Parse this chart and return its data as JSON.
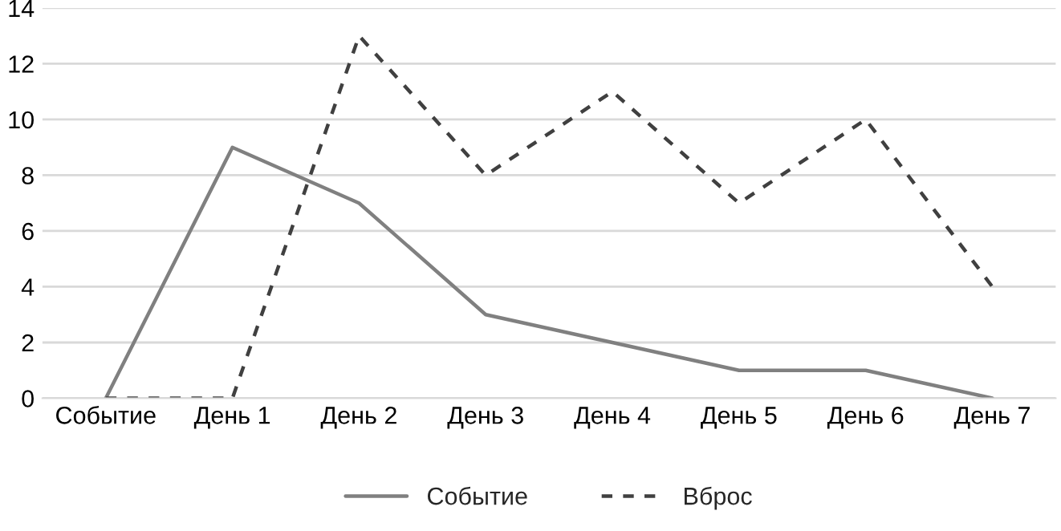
{
  "chart_data": {
    "type": "line",
    "categories": [
      "Событие",
      "День 1",
      "День 2",
      "День 3",
      "День 4",
      "День 5",
      "День 6",
      "День 7"
    ],
    "series": [
      {
        "name": "Событие",
        "color": "#808080",
        "line_style": "solid",
        "values": [
          0,
          9,
          7,
          3,
          2,
          1,
          1,
          0
        ]
      },
      {
        "name": "Вброс",
        "color": "#404040",
        "line_style": "dashed",
        "values": [
          0,
          0,
          13,
          8,
          11,
          7,
          10,
          4
        ]
      }
    ],
    "ylim": [
      0,
      14
    ],
    "yticks": [
      0,
      2,
      4,
      6,
      8,
      10,
      12,
      14
    ],
    "grid": "y",
    "legend": "bottom",
    "marker": "none"
  }
}
